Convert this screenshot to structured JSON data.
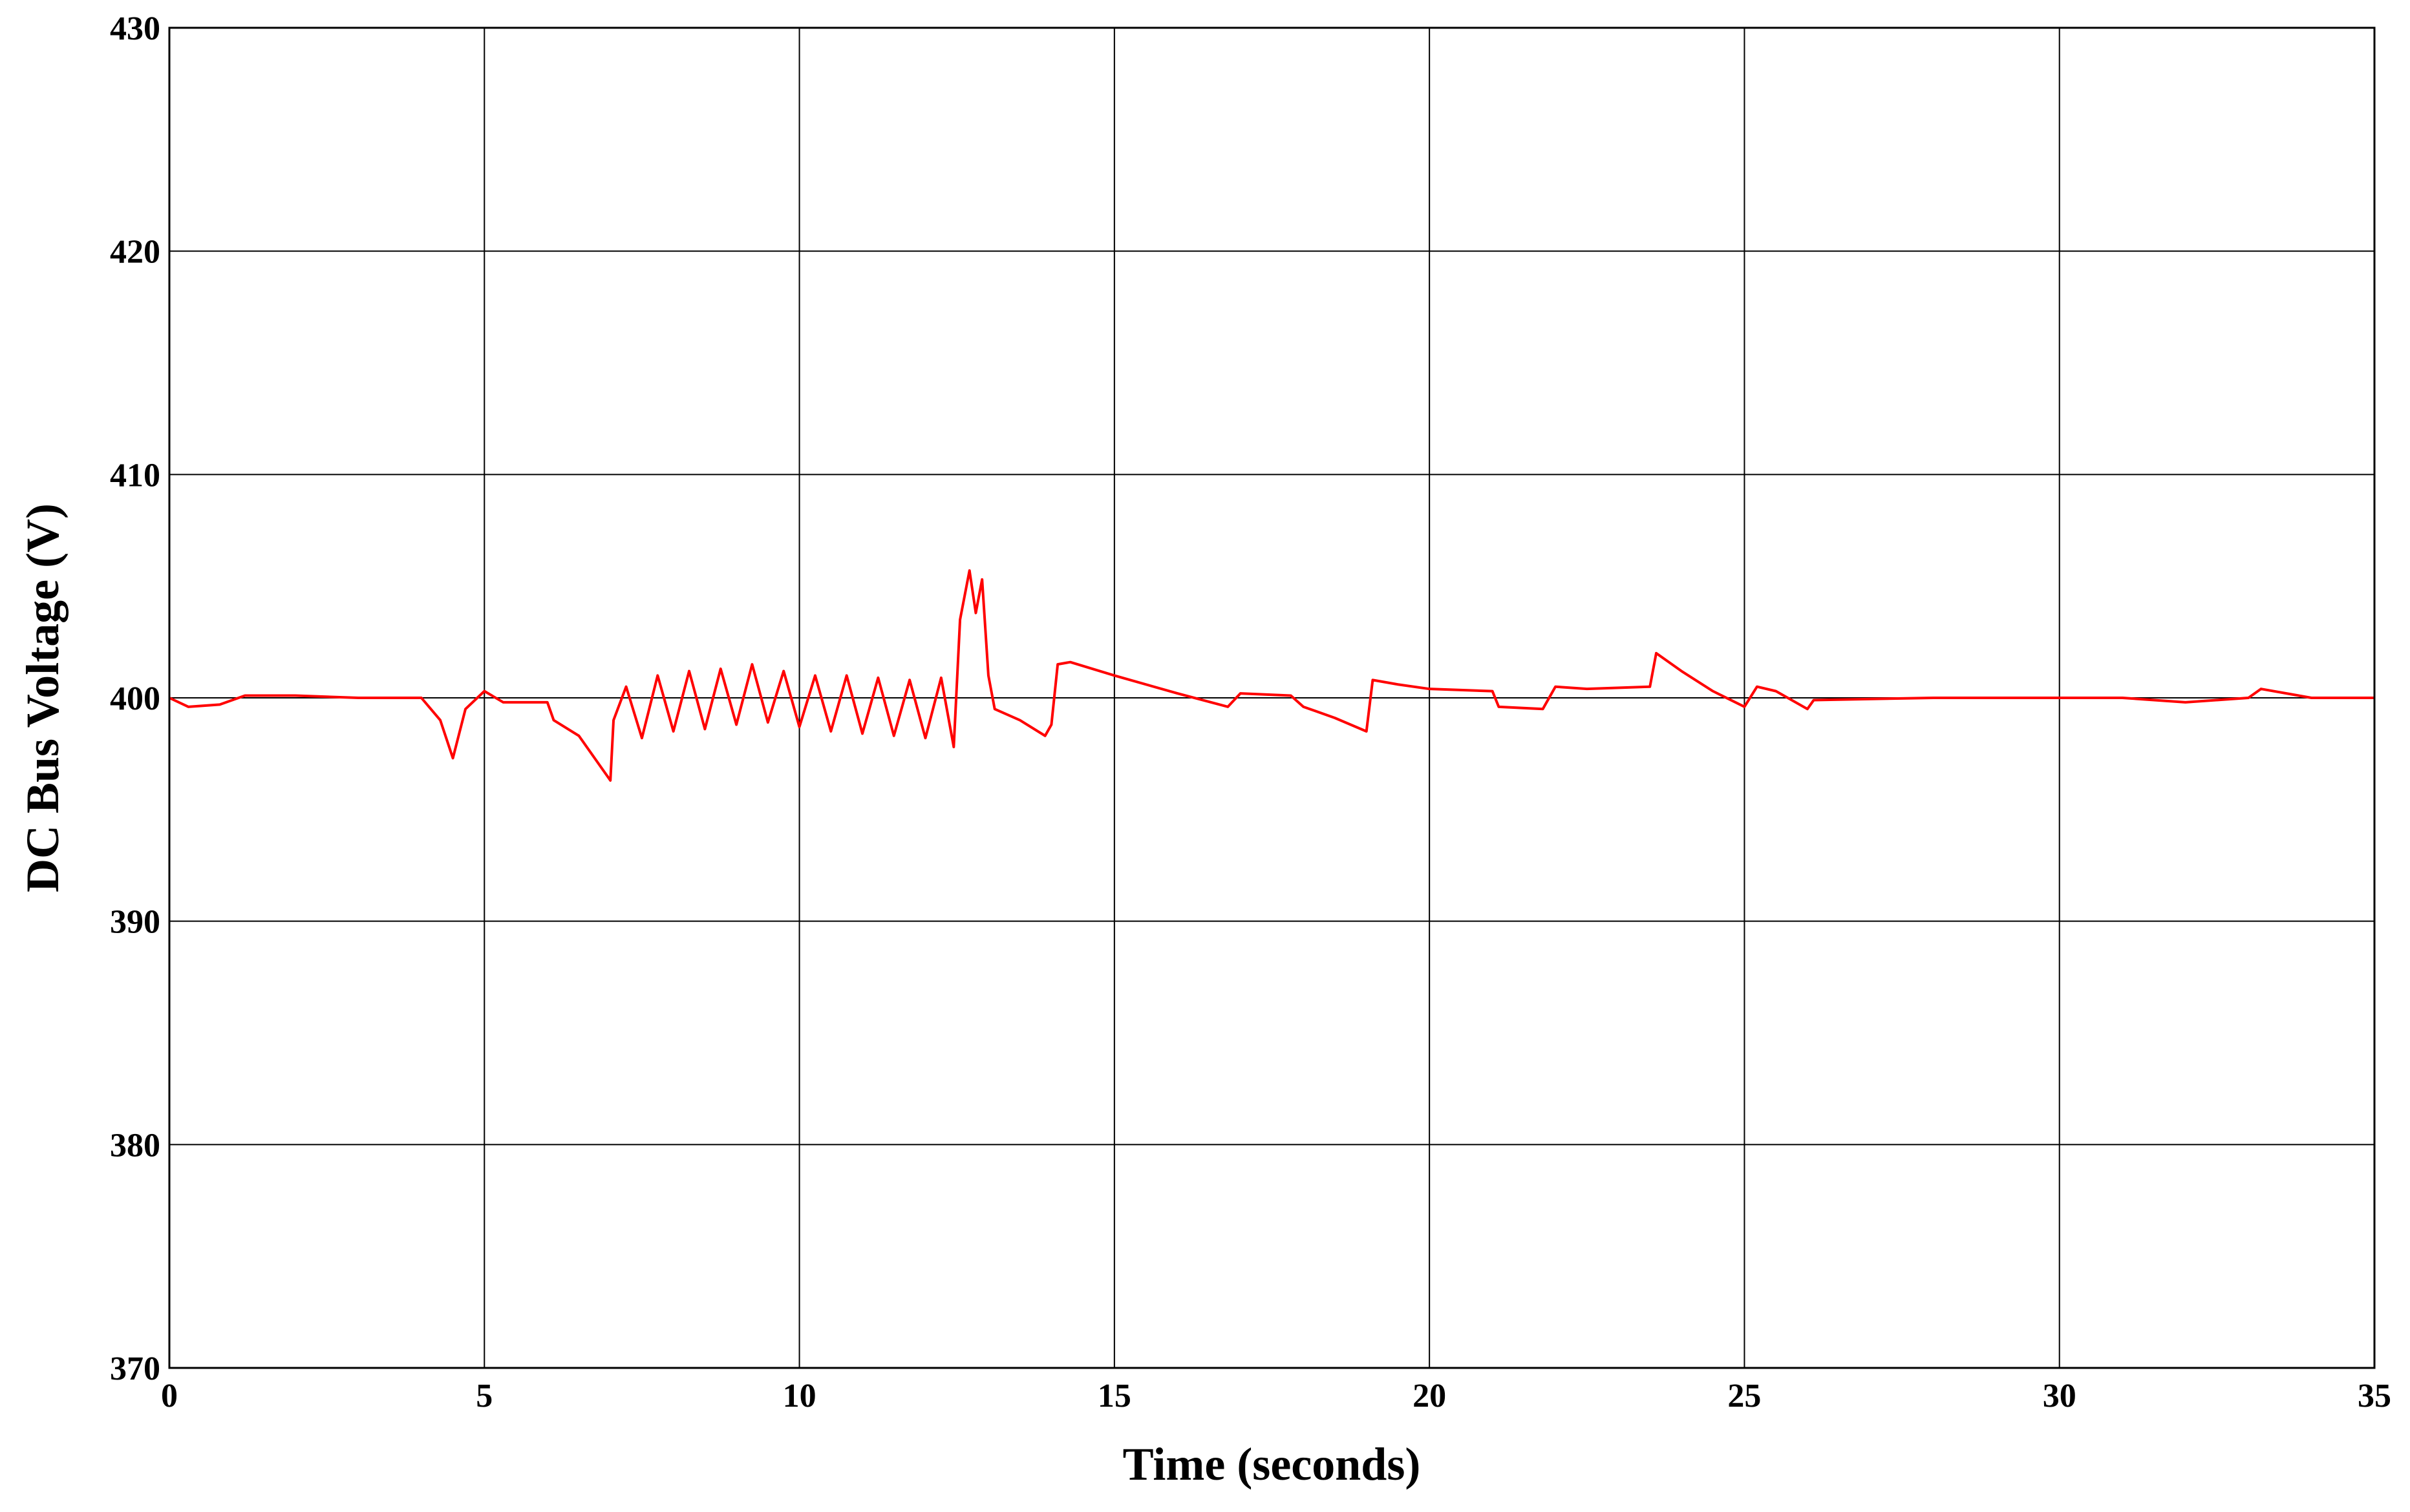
{
  "chart_data": {
    "type": "line",
    "xlabel": "Time (seconds)",
    "ylabel": "DC Bus Voltage (V)",
    "xlim": [
      0,
      35
    ],
    "ylim": [
      370,
      430
    ],
    "xticks": [
      0,
      5,
      10,
      15,
      20,
      25,
      30,
      35
    ],
    "yticks": [
      370,
      380,
      390,
      400,
      410,
      420,
      430
    ],
    "grid": true,
    "series": [
      {
        "color": "#ff0000",
        "x": [
          0,
          0.3,
          0.8,
          1.2,
          2,
          3,
          4,
          4.3,
          4.5,
          4.7,
          5,
          5.3,
          6,
          6.1,
          6.5,
          7,
          7.05,
          7.25,
          7.5,
          7.75,
          8,
          8.25,
          8.5,
          8.75,
          9,
          9.25,
          9.5,
          9.75,
          10,
          10.25,
          10.5,
          10.75,
          11,
          11.25,
          11.5,
          11.75,
          12,
          12.25,
          12.45,
          12.55,
          12.7,
          12.8,
          12.9,
          13,
          13.1,
          13.5,
          13.9,
          14,
          14.1,
          14.3,
          15,
          16,
          16.8,
          17,
          17.8,
          18,
          18.5,
          19,
          19.1,
          19.5,
          20,
          21,
          21.1,
          21.8,
          22,
          22.5,
          23.5,
          23.6,
          24,
          24.5,
          25,
          25.2,
          25.5,
          26,
          26.1,
          28,
          30,
          31,
          32,
          33,
          33.2,
          34,
          35
        ],
        "values": [
          400,
          399.6,
          399.7,
          400.1,
          400.1,
          400,
          400,
          399,
          397.3,
          399.5,
          400.3,
          399.8,
          399.8,
          399,
          398.3,
          396.3,
          399,
          400.5,
          398.2,
          401,
          398.5,
          401.2,
          398.6,
          401.3,
          398.8,
          401.5,
          398.9,
          401.2,
          398.7,
          401,
          398.5,
          401,
          398.4,
          400.9,
          398.3,
          400.8,
          398.2,
          400.9,
          397.8,
          403.5,
          405.7,
          403.8,
          405.3,
          401,
          399.5,
          399,
          398.3,
          398.8,
          401.5,
          401.6,
          401,
          400.2,
          399.6,
          400.2,
          400.1,
          399.6,
          399.1,
          398.5,
          400.8,
          400.6,
          400.4,
          400.3,
          399.6,
          399.5,
          400.5,
          400.4,
          400.5,
          402,
          401.2,
          400.3,
          399.6,
          400.5,
          400.3,
          399.5,
          399.9,
          400,
          400,
          400,
          399.8,
          400,
          400.4,
          400,
          400
        ]
      }
    ]
  }
}
